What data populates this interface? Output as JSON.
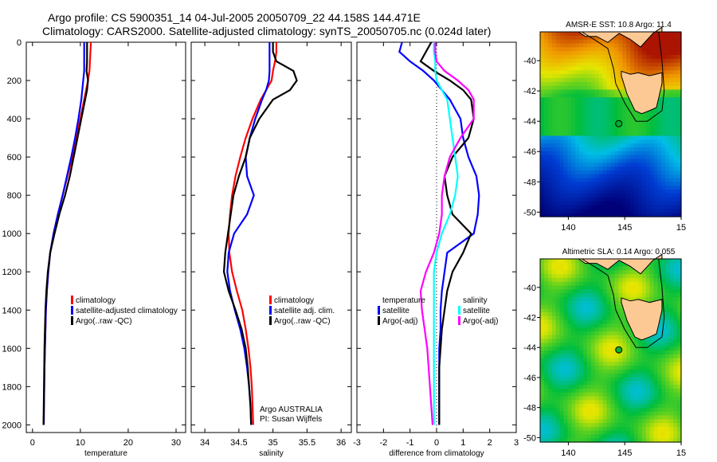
{
  "title_line1": "Argo profile: CS 5900351_14 04-Jul-2005 20050709_22 44.158S 144.471E",
  "title_line2": "Climatology: CARS2000. Satellite-adjusted climatology: synTS_20050705.nc (0.024d later)",
  "colors": {
    "climatology": "#ff0000",
    "satellite": "#0000ff",
    "argo": "#000000",
    "sal_satellite": "#00ffff",
    "sal_argo": "#ff00ff",
    "land": "#fcc994"
  },
  "chart_data": [
    {
      "type": "line",
      "xlabel": "temperature",
      "ylabel": "",
      "xlim": [
        -1.3,
        32
      ],
      "ylim": [
        2040,
        0
      ],
      "xticks": [
        "0",
        "10",
        "20",
        "30"
      ],
      "xtick_values": [
        0,
        10,
        20,
        30
      ],
      "yticks": [
        "0",
        "200",
        "400",
        "600",
        "800",
        "1000",
        "1200",
        "1400",
        "1600",
        "1800",
        "2000"
      ],
      "depth": [
        0,
        50,
        100,
        150,
        200,
        250,
        300,
        400,
        500,
        600,
        700,
        800,
        900,
        1000,
        1100,
        1200,
        1300,
        1400,
        1500,
        1600,
        1700,
        1800,
        1900,
        2000
      ],
      "series": [
        {
          "name": "climatology",
          "color": "#ff0000",
          "values": [
            12.2,
            12.1,
            12,
            11.9,
            11.6,
            11.2,
            10.8,
            10,
            9.2,
            8.3,
            7.3,
            6.3,
            5.3,
            4.4,
            3.7,
            3.3,
            3,
            2.8,
            2.7,
            2.6,
            2.5,
            2.45,
            2.4,
            2.35
          ]
        },
        {
          "name": "satellite-adjusted climatology",
          "color": "#0000ff",
          "values": [
            10.8,
            10.8,
            10.8,
            10.8,
            10.6,
            10.4,
            10.2,
            9.6,
            8.9,
            8.1,
            7.2,
            6.3,
            5.3,
            4.4,
            3.7,
            3.3,
            3,
            2.8,
            2.7,
            2.6,
            2.5,
            2.45,
            2.4,
            2.35
          ]
        },
        {
          "name": "Argo(..raw -QC)",
          "color": "#000000",
          "values": [
            11.4,
            11.4,
            11.4,
            11.3,
            11.6,
            11.4,
            11,
            10.2,
            9.4,
            8.6,
            7.8,
            6.8,
            5.6,
            4.6,
            3.7,
            3.2,
            2.9,
            2.7,
            2.6,
            2.5,
            2.45,
            2.4,
            2.35,
            2.3
          ]
        }
      ]
    },
    {
      "type": "line",
      "xlabel": "salinity",
      "xlim": [
        33.8,
        36.15
      ],
      "ylim": [
        2040,
        0
      ],
      "xticks": [
        "34",
        "34.5",
        "35",
        "35.5",
        "36"
      ],
      "xtick_values": [
        34,
        34.5,
        35,
        35.5,
        36
      ],
      "depth": [
        0,
        50,
        100,
        150,
        200,
        250,
        300,
        400,
        500,
        600,
        700,
        800,
        900,
        1000,
        1100,
        1200,
        1300,
        1400,
        1500,
        1600,
        1700,
        1800,
        1900,
        2000
      ],
      "series": [
        {
          "name": "climatology",
          "color": "#ff0000",
          "values": [
            35.05,
            35.05,
            35.03,
            35.0,
            34.98,
            34.9,
            34.82,
            34.7,
            34.6,
            34.52,
            34.45,
            34.4,
            34.37,
            34.35,
            34.36,
            34.4,
            34.47,
            34.55,
            34.6,
            34.64,
            34.67,
            34.69,
            34.7,
            34.71
          ]
        },
        {
          "name": "satellite adj. clim.",
          "color": "#0000ff",
          "values": [
            34.95,
            34.95,
            34.95,
            34.95,
            34.94,
            34.9,
            34.84,
            34.74,
            34.66,
            34.6,
            34.62,
            34.72,
            34.62,
            34.43,
            34.35,
            34.33,
            34.37,
            34.44,
            34.52,
            34.58,
            34.62,
            34.65,
            34.67,
            34.68
          ]
        },
        {
          "name": "Argo(..raw -QC)",
          "color": "#000000",
          "values": [
            35.0,
            35.0,
            35.05,
            35.3,
            35.35,
            35.25,
            35.0,
            34.8,
            34.66,
            34.6,
            34.5,
            34.42,
            34.38,
            34.34,
            34.3,
            34.28,
            34.35,
            34.45,
            34.54,
            34.6,
            34.63,
            34.65,
            34.67,
            34.68
          ]
        }
      ],
      "annotation": [
        "Argo AUSTRALIA",
        "PI: Susan Wijffels"
      ]
    },
    {
      "type": "line",
      "xlabel": "difference from climatology",
      "xlim": [
        -3,
        3
      ],
      "ylim": [
        2040,
        0
      ],
      "xticks": [
        "-3",
        "-2",
        "-1",
        "0",
        "1",
        "2",
        "3"
      ],
      "xtick_values": [
        -3,
        -2,
        -1,
        0,
        1,
        2,
        3
      ],
      "depth": [
        0,
        50,
        100,
        150,
        200,
        250,
        300,
        400,
        500,
        600,
        700,
        800,
        900,
        1000,
        1100,
        1200,
        1300,
        1400,
        1500,
        1600,
        1700,
        1800,
        1900,
        2000
      ],
      "legend_headers": [
        "temperature",
        "salinity"
      ],
      "series": [
        {
          "name": "satellite",
          "group": "temperature",
          "color": "#0000ff",
          "values": [
            -1.3,
            -1.4,
            -1.0,
            -0.5,
            -0.1,
            0.2,
            0.5,
            0.9,
            1.0,
            1.2,
            1.5,
            1.6,
            1.55,
            1.4,
            0.4,
            0.3,
            0.2,
            0.15,
            0.15,
            0.1,
            0.1,
            0.1,
            0.1,
            0.1
          ]
        },
        {
          "name": "Argo(-adj)",
          "group": "temperature",
          "color": "#000000",
          "values": [
            -0.2,
            -0.4,
            -0.6,
            -0.1,
            0.5,
            1.0,
            1.3,
            1.4,
            1.2,
            0.6,
            0.3,
            0.4,
            0.6,
            1.3,
            1.0,
            0.6,
            0.4,
            0.3,
            0.2,
            0.15,
            0.1,
            0.1,
            0.1,
            0.1
          ]
        },
        {
          "name": "satellite",
          "group": "salinity",
          "color": "#00ffff",
          "values": [
            -0.1,
            -0.1,
            -0.05,
            -0.05,
            0.0,
            0.2,
            0.4,
            0.5,
            0.6,
            0.7,
            0.8,
            0.7,
            0.5,
            0.2,
            0.0,
            -0.1,
            -0.1,
            -0.1,
            -0.1,
            -0.1,
            -0.1,
            -0.1,
            -0.1,
            -0.1
          ]
        },
        {
          "name": "Argo(-adj)",
          "group": "salinity",
          "color": "#ff00ff",
          "values": [
            -0.05,
            -0.05,
            0.0,
            0.3,
            0.8,
            1.2,
            1.4,
            1.4,
            0.9,
            0.5,
            0.3,
            0.2,
            0.2,
            0.1,
            -0.1,
            -0.4,
            -0.6,
            -0.55,
            -0.45,
            -0.35,
            -0.3,
            -0.25,
            -0.2,
            -0.15
          ]
        }
      ]
    },
    {
      "type": "heatmap",
      "title": "AMSR-E SST: 10.8 Argo: 11.4",
      "xlim": [
        137.5,
        150
      ],
      "ylim": [
        -50.3,
        -38.1
      ],
      "xticks": [
        "140",
        "145",
        "15"
      ],
      "yticks": [
        "-40",
        "-42",
        "-44",
        "-46",
        "-48",
        "-50"
      ],
      "argo_position": {
        "lon": 144.471,
        "lat": -44.158
      }
    },
    {
      "type": "heatmap",
      "title": "Altimetric SLA: 0.14 Argo: 0.055",
      "xlim": [
        137.5,
        150
      ],
      "ylim": [
        -50.3,
        -38.1
      ],
      "xticks": [
        "140",
        "145",
        "15"
      ],
      "yticks": [
        "-40",
        "-42",
        "-44",
        "-46",
        "-48",
        "-50"
      ],
      "argo_position": {
        "lon": 144.471,
        "lat": -44.158
      }
    }
  ]
}
